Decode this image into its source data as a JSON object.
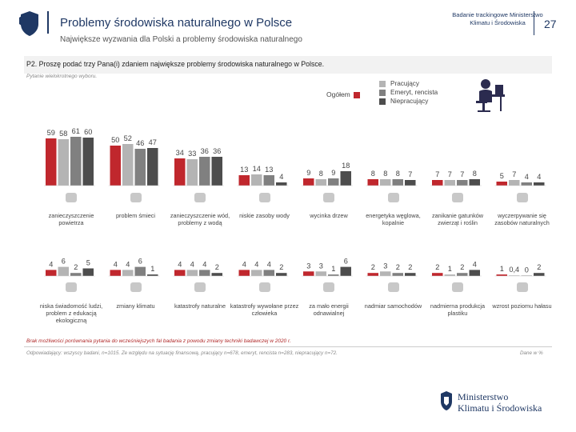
{
  "header": {
    "title": "Problemy środowiska naturalnego w Polsce",
    "subtitle": "Największe wyzwania dla Polski a problemy środowiska naturalnego",
    "study_name": "Badanie trackingowe Ministerstwo Klimatu i Środowiska",
    "page_number": "27"
  },
  "question": {
    "text": "P2. Proszę podać trzy Pana(i) zdaniem największe problemy środowiska naturalnego w Polsce.",
    "note": "Pytanie wielokrotnego wyboru."
  },
  "legend": {
    "total": "Ogółem",
    "groups": [
      "Pracujący",
      "Emeryt, rencista",
      "Niepracujący"
    ]
  },
  "colors": {
    "total": "#c0272d",
    "working": "#b4b4b4",
    "retired": "#808080",
    "not_working": "#4d4d4d",
    "brand": "#1f3864",
    "icon": "#c8c8c8"
  },
  "chart_data": {
    "type": "bar",
    "title": "P2. Proszę podać trzy Pana(i) zdaniem największe problemy środowiska naturalnego w Polsce.",
    "unit": "%",
    "series": [
      {
        "name": "Ogółem",
        "values": [
          59,
          50,
          34,
          13,
          9,
          8,
          7,
          5,
          4,
          4,
          4,
          4,
          3,
          2,
          2,
          1
        ]
      },
      {
        "name": "Pracujący",
        "values": [
          58,
          52,
          33,
          14,
          8,
          8,
          7,
          7,
          6,
          4,
          4,
          4,
          3,
          3,
          1,
          0.4
        ]
      },
      {
        "name": "Emeryt, rencista",
        "values": [
          61,
          46,
          36,
          13,
          9,
          8,
          7,
          4,
          2,
          6,
          4,
          4,
          1,
          2,
          2,
          0
        ]
      },
      {
        "name": "Niepracujący",
        "values": [
          60,
          47,
          36,
          4,
          18,
          7,
          8,
          4,
          5,
          1,
          2,
          2,
          6,
          2,
          4,
          2
        ]
      }
    ],
    "value_labels": [
      [
        "59",
        "58",
        "61",
        "60"
      ],
      [
        "50",
        "52",
        "46",
        "47"
      ],
      [
        "34",
        "33",
        "36",
        "36"
      ],
      [
        "13",
        "14",
        "13",
        "4"
      ],
      [
        "9",
        "8",
        "9",
        "18"
      ],
      [
        "8",
        "8",
        "8",
        "7"
      ],
      [
        "7",
        "7",
        "7",
        "8"
      ],
      [
        "5",
        "7",
        "4",
        "4"
      ],
      [
        "4",
        "6",
        "2",
        "5"
      ],
      [
        "4",
        "4",
        "6",
        "1"
      ],
      [
        "4",
        "4",
        "4",
        "2"
      ],
      [
        "4",
        "4",
        "4",
        "2"
      ],
      [
        "3",
        "3",
        "1",
        "6"
      ],
      [
        "2",
        "3",
        "2",
        "2"
      ],
      [
        "2",
        "1",
        "2",
        "4"
      ],
      [
        "1",
        "0,4",
        "0",
        "2"
      ]
    ],
    "categories": [
      "zanieczyszczenie powietrza",
      "problem śmieci",
      "zanieczyszczenie wód, problemy z wodą",
      "niskie zasoby wody",
      "wycinka drzew",
      "energetyka węglowa, kopalnie",
      "zanikanie gatunków zwierząt i roślin",
      "wyczerpywanie się zasobów naturalnych",
      "niska świadomość ludzi, problem z edukacją ekologiczną",
      "zmiany klimatu",
      "katastrofy naturalne",
      "katastrofy wywołane przez człowieka",
      "za mało energii odnawialnej",
      "nadmiar samochodów",
      "nadmierna produkcja plastiku",
      "wzrost poziomu hałasu"
    ],
    "icons": [
      "wind-icon",
      "recycle-icon",
      "factory-water-icon",
      "tap-icon",
      "tree-icon",
      "pumpjack-icon",
      "bird-icon",
      "layers-icon",
      "brain-icon",
      "thermometer-icon",
      "tornado-icon",
      "forest-fire-icon",
      "wind-turbine-icon",
      "car-icon",
      "bottle-icon",
      "speaker-icon"
    ]
  },
  "footer": {
    "note": "Brak możliwości porównania pytania do wcześniejszych fal badania z powodu zmiany techniki badawczej w 2020 r.",
    "base": "Odpowiadający: wszyscy badani, n=1015. Ze względu na sytuację finansową, pracujący n=678, emeryt, rencista n=283, niepracujący n=72.",
    "data_label": "Dane w %"
  },
  "ministry_logo": {
    "line1": "Ministerstwo",
    "line2": "Klimatu i Środowiska"
  }
}
